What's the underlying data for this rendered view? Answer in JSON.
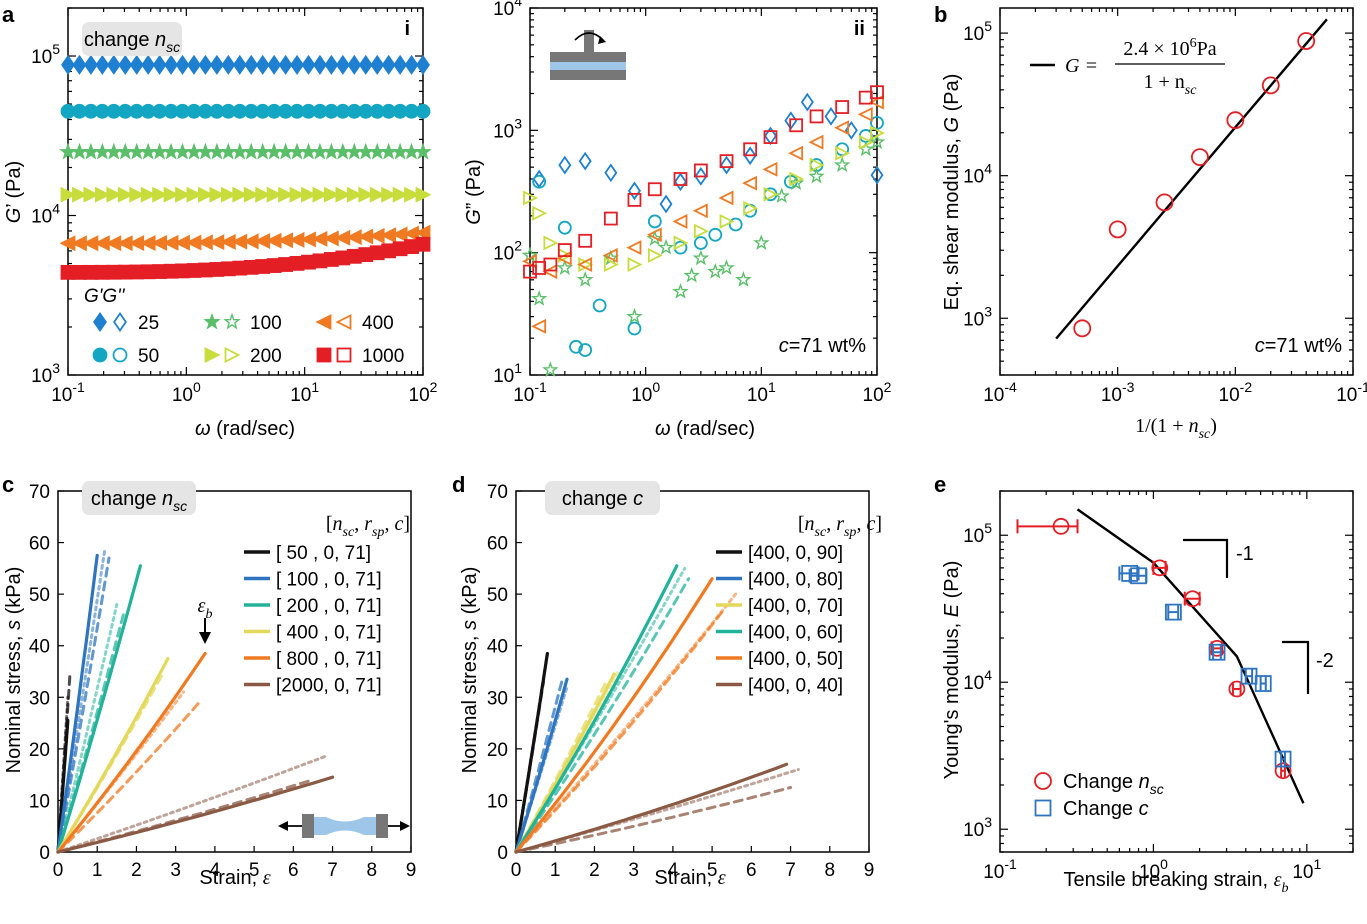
{
  "panel_labels": [
    "a",
    "b",
    "c",
    "d",
    "e"
  ],
  "chart_data": [
    {
      "id": "a_i",
      "type": "scatter",
      "corner_label": "i",
      "badge": "change n_sc",
      "xlabel": "ω (rad/sec)",
      "ylabel": "G' (Pa)",
      "xscale": "log",
      "yscale": "log",
      "xlim": [
        0.1,
        100
      ],
      "ylim": [
        1000,
        200000
      ],
      "xticks": [
        {
          "v": 0.1,
          "b": "10",
          "e": "-1"
        },
        {
          "v": 1,
          "b": "10",
          "e": "0"
        },
        {
          "v": 10,
          "b": "10",
          "e": "1"
        },
        {
          "v": 100,
          "b": "10",
          "e": "2"
        }
      ],
      "yticks": [
        {
          "v": 1000,
          "b": "10",
          "e": "3"
        },
        {
          "v": 10000,
          "b": "10",
          "e": "4"
        },
        {
          "v": 100000,
          "b": "10",
          "e": "5"
        }
      ],
      "legend_title": "G'G''",
      "series": [
        {
          "name": "25",
          "marker": "diamond",
          "color": "#1f7fd0",
          "x": [
            0.1,
            100
          ],
          "y": [
            88000,
            88000
          ],
          "shape": "flat"
        },
        {
          "name": "50",
          "marker": "circle",
          "color": "#13a6c2",
          "x": [
            0.1,
            100
          ],
          "y": [
            45000,
            45000
          ],
          "shape": "flat"
        },
        {
          "name": "100",
          "marker": "star",
          "color": "#5bbf6a",
          "x": [
            0.1,
            100
          ],
          "y": [
            25000,
            25000
          ],
          "shape": "flat"
        },
        {
          "name": "200",
          "marker": "triangle-right",
          "color": "#c8dc3c",
          "x": [
            0.1,
            100
          ],
          "y": [
            13500,
            13500
          ],
          "shape": "flat"
        },
        {
          "name": "400",
          "marker": "triangle-left",
          "color": "#f07a22",
          "x": [
            0.1,
            100
          ],
          "y": [
            6700,
            7800
          ],
          "shape": "rise"
        },
        {
          "name": "1000",
          "marker": "square",
          "color": "#e41e25",
          "x": [
            0.1,
            100
          ],
          "y": [
            4400,
            6600
          ],
          "shape": "rise"
        }
      ]
    },
    {
      "id": "a_ii",
      "type": "scatter",
      "corner_label": "ii",
      "annotation": "c=71 wt%",
      "xlabel": "ω (rad/sec)",
      "ylabel": "G'' (Pa)",
      "xscale": "log",
      "yscale": "log",
      "xlim": [
        0.1,
        100
      ],
      "ylim": [
        10,
        10000
      ],
      "xticks": [
        {
          "v": 0.1,
          "b": "10",
          "e": "-1"
        },
        {
          "v": 1,
          "b": "10",
          "e": "0"
        },
        {
          "v": 10,
          "b": "10",
          "e": "1"
        },
        {
          "v": 100,
          "b": "10",
          "e": "2"
        }
      ],
      "yticks": [
        {
          "v": 10,
          "b": "10",
          "e": "1"
        },
        {
          "v": 100,
          "b": "10",
          "e": "2"
        },
        {
          "v": 1000,
          "b": "10",
          "e": "3"
        },
        {
          "v": 10000,
          "b": "10",
          "e": "4"
        }
      ],
      "series": [
        {
          "name": "25",
          "marker": "diamond",
          "color": "#1f7fd0",
          "x": [
            0.12,
            0.2,
            0.3,
            0.5,
            0.8,
            1.5,
            2,
            3,
            5,
            8,
            12,
            18,
            25,
            40,
            60,
            100
          ],
          "y": [
            400,
            520,
            560,
            450,
            320,
            250,
            380,
            420,
            520,
            620,
            900,
            1200,
            1700,
            1300,
            1000,
            430
          ]
        },
        {
          "name": "50",
          "marker": "circle",
          "color": "#13a6c2",
          "x": [
            0.12,
            0.2,
            0.25,
            0.3,
            0.4,
            0.8,
            1.2,
            2,
            3,
            4,
            6,
            8,
            12,
            18,
            30,
            50,
            80,
            100
          ],
          "y": [
            380,
            160,
            17,
            16,
            37,
            24,
            180,
            110,
            120,
            140,
            170,
            220,
            300,
            380,
            520,
            700,
            900,
            1150
          ]
        },
        {
          "name": "100",
          "marker": "star",
          "color": "#5bbf6a",
          "x": [
            0.1,
            0.12,
            0.15,
            0.2,
            0.3,
            0.5,
            0.8,
            1.2,
            1.5,
            2,
            2.5,
            3,
            4,
            5,
            7,
            10,
            15,
            20,
            30,
            50,
            80,
            100
          ],
          "y": [
            95,
            42,
            11,
            75,
            60,
            90,
            30,
            130,
            110,
            48,
            65,
            90,
            70,
            75,
            60,
            120,
            290,
            370,
            420,
            520,
            700,
            800
          ]
        },
        {
          "name": "200",
          "marker": "triangle-right",
          "color": "#c8dc3c",
          "x": [
            0.1,
            0.12,
            0.15,
            0.2,
            0.3,
            0.5,
            0.8,
            1.2,
            2,
            3,
            5,
            8,
            12,
            20,
            30,
            50,
            80,
            100
          ],
          "y": [
            280,
            210,
            120,
            95,
            80,
            80,
            80,
            95,
            120,
            150,
            180,
            230,
            300,
            400,
            520,
            650,
            800,
            950
          ]
        },
        {
          "name": "400",
          "marker": "triangle-left",
          "color": "#f07a22",
          "x": [
            0.1,
            0.12,
            0.15,
            0.2,
            0.3,
            0.5,
            0.8,
            1.2,
            2,
            3,
            5,
            8,
            12,
            20,
            30,
            50,
            80,
            100
          ],
          "y": [
            85,
            25,
            70,
            90,
            80,
            95,
            110,
            140,
            180,
            220,
            280,
            370,
            480,
            650,
            800,
            1050,
            1350,
            1700
          ]
        },
        {
          "name": "1000",
          "marker": "square",
          "color": "#e41e25",
          "x": [
            0.1,
            0.12,
            0.15,
            0.2,
            0.3,
            0.5,
            0.8,
            1.2,
            2,
            3,
            5,
            8,
            12,
            20,
            30,
            50,
            80,
            100
          ],
          "y": [
            70,
            75,
            80,
            105,
            125,
            190,
            270,
            330,
            400,
            470,
            560,
            700,
            880,
            1100,
            1300,
            1550,
            1850,
            2050
          ]
        }
      ]
    },
    {
      "id": "b",
      "type": "scatter",
      "annotation": "c=71 wt%",
      "legend_formula": {
        "lhs": "G =",
        "num": "2.4 × 10",
        "num_exp": "6",
        "num_unit": "Pa",
        "den": "1 + n",
        "den_sub": "sc"
      },
      "xlabel": "1/(1 + n_sc)",
      "ylabel": "Eq. shear modulus, G (Pa)",
      "xscale": "log",
      "yscale": "log",
      "xlim": [
        0.0001,
        0.1
      ],
      "ylim": [
        400,
        150000
      ],
      "xticks": [
        {
          "v": 0.0001,
          "b": "10",
          "e": "-4"
        },
        {
          "v": 0.001,
          "b": "10",
          "e": "-3"
        },
        {
          "v": 0.01,
          "b": "10",
          "e": "-2"
        },
        {
          "v": 0.1,
          "b": "10",
          "e": "-1"
        }
      ],
      "yticks": [
        {
          "v": 1000,
          "b": "10",
          "e": "3"
        },
        {
          "v": 10000,
          "b": "10",
          "e": "4"
        },
        {
          "v": 100000,
          "b": "10",
          "e": "5"
        }
      ],
      "points": {
        "x": [
          0.0005,
          0.001,
          0.0025,
          0.005,
          0.01,
          0.02,
          0.04
        ],
        "y": [
          850,
          4200,
          6500,
          13500,
          24500,
          43000,
          88000
        ],
        "color": "#e41e25"
      },
      "fit": {
        "x": [
          0.0003,
          0.06
        ],
        "y": [
          720,
          125000
        ]
      }
    },
    {
      "id": "c",
      "type": "line",
      "badge": "change n_sc",
      "xlabel": "Strain, ε",
      "ylabel": "Nominal stress, s (kPa)",
      "xlim": [
        0,
        9
      ],
      "ylim": [
        0,
        70
      ],
      "xticks": [
        0,
        1,
        2,
        3,
        4,
        5,
        6,
        7,
        8,
        9
      ],
      "yticks": [
        0,
        10,
        20,
        30,
        40,
        50,
        60,
        70
      ],
      "legend_title": "[n_sc, r_sp, c]",
      "break_label": "ε_b",
      "series": [
        {
          "name": "[  50  , 0, 71]",
          "color": "#111111",
          "end": [
            0.25,
            25.5
          ],
          "curv": 0.05,
          "dash1": [
            0.25,
            30
          ],
          "dash2": [
            0.3,
            34
          ]
        },
        {
          "name": "[ 100  , 0, 71]",
          "color": "#2e74c0",
          "end": [
            1.0,
            57.5
          ],
          "curv": 0.05,
          "dash1": [
            1.2,
            59
          ],
          "dash2": [
            1.3,
            57
          ]
        },
        {
          "name": "[ 200  , 0, 71]",
          "color": "#22b29a",
          "end": [
            2.1,
            55.5
          ],
          "curv": 0.06,
          "dash1": [
            1.5,
            48
          ],
          "dash2": [
            1.7,
            47
          ]
        },
        {
          "name": "[ 400  , 0, 71]",
          "color": "#e3d85a",
          "end": [
            2.8,
            37.5
          ],
          "curv": 0.08,
          "dash1": [
            2.5,
            33
          ],
          "dash2": [
            2.7,
            35
          ]
        },
        {
          "name": "[ 800  , 0, 71]",
          "color": "#f07a22",
          "end": [
            3.75,
            38.5
          ],
          "curv": 0.1,
          "dash1": [
            3.2,
            31
          ],
          "dash2": [
            3.6,
            29
          ]
        },
        {
          "name": "[2000, 0, 71]",
          "color": "#8b5a45",
          "end": [
            7.0,
            14.5
          ],
          "curv": 0.12,
          "dash1": [
            6.8,
            18.5
          ],
          "dash2": [
            6.5,
            14
          ]
        }
      ]
    },
    {
      "id": "d",
      "type": "line",
      "badge": "change c",
      "xlabel": "Strain, ε",
      "ylabel": "Nominal stress, s (kPa)",
      "xlim": [
        0,
        9
      ],
      "ylim": [
        0,
        70
      ],
      "xticks": [
        0,
        1,
        2,
        3,
        4,
        5,
        6,
        7,
        8,
        9
      ],
      "yticks": [
        0,
        10,
        20,
        30,
        40,
        50,
        60,
        70
      ],
      "legend_title": "[n_sc, r_sp, c]",
      "series": [
        {
          "name": "[400, 0, 90]",
          "color": "#111111",
          "end": [
            0.8,
            38.5
          ],
          "curv": 0.05,
          "dash1": [
            0.75,
            36
          ],
          "dash2": [
            0.7,
            33
          ]
        },
        {
          "name": "[400, 0, 80]",
          "color": "#2e74c0",
          "end": [
            1.3,
            33.5
          ],
          "curv": 0.05,
          "dash1": [
            1.3,
            32
          ],
          "dash2": [
            1.2,
            34
          ]
        },
        {
          "name": "[400, 0, 70]",
          "color": "#e3d85a",
          "end": [
            2.5,
            34.5
          ],
          "curv": 0.07,
          "dash1": [
            2.6,
            35
          ],
          "dash2": [
            2.3,
            33
          ]
        },
        {
          "name": "[400, 0, 60]",
          "color": "#22b29a",
          "end": [
            4.1,
            55.5
          ],
          "curv": 0.12,
          "dash1": [
            4.3,
            55
          ],
          "dash2": [
            4.4,
            53
          ]
        },
        {
          "name": "[400, 0, 50]",
          "color": "#f07a22",
          "end": [
            5.0,
            53.0
          ],
          "curv": 0.14,
          "dash1": [
            5.6,
            50
          ],
          "dash2": [
            5.3,
            47
          ]
        },
        {
          "name": "[400, 0, 40]",
          "color": "#8b5a45",
          "end": [
            6.9,
            17.0
          ],
          "curv": 0.15,
          "dash1": [
            7.2,
            16
          ],
          "dash2": [
            7.0,
            12.5
          ]
        }
      ]
    },
    {
      "id": "e",
      "type": "scatter",
      "xlabel": "Tensile breaking strain, ε_b",
      "ylabel": "Young's modulus, E (Pa)",
      "xscale": "log",
      "yscale": "log",
      "xlim": [
        0.1,
        20
      ],
      "ylim": [
        700,
        200000
      ],
      "xticks": [
        {
          "v": 0.1,
          "b": "10",
          "e": "-1"
        },
        {
          "v": 1,
          "b": "10",
          "e": "0"
        },
        {
          "v": 10,
          "b": "10",
          "e": "1"
        }
      ],
      "yticks": [
        {
          "v": 1000,
          "b": "10",
          "e": "3"
        },
        {
          "v": 10000,
          "b": "10",
          "e": "4"
        },
        {
          "v": 100000,
          "b": "10",
          "e": "5"
        }
      ],
      "slope_labels": [
        "-1",
        "-2"
      ],
      "series": [
        {
          "name": "Change n_sc",
          "marker": "circle",
          "color": "#e41e25",
          "x": [
            0.25,
            1.1,
            1.8,
            2.6,
            3.5,
            7.0
          ],
          "y": [
            115000,
            60000,
            37000,
            17000,
            9000,
            2500
          ],
          "xerr": [
            [
              0.13,
              0.32
            ],
            [
              1.0,
              1.2
            ],
            [
              1.6,
              2.0
            ],
            [
              2.4,
              2.8
            ],
            [
              3.3,
              3.7
            ],
            [
              6.8,
              7.2
            ]
          ]
        },
        {
          "name": "Change c",
          "marker": "square",
          "color": "#2e74c0",
          "x": [
            0.7,
            0.8,
            1.35,
            2.6,
            4.2,
            5.2,
            7.0
          ],
          "y": [
            55000,
            53000,
            30000,
            16000,
            11000,
            9800,
            3000
          ],
          "xerr": [
            [
              0.6,
              0.8
            ],
            [
              0.7,
              0.9
            ],
            [
              1.25,
              1.45
            ],
            [
              2.45,
              2.75
            ],
            [
              4.0,
              4.4
            ],
            [
              5.0,
              5.4
            ],
            [
              6.8,
              7.2
            ]
          ]
        }
      ],
      "fit": {
        "x": [
          0.32,
          1.0,
          3.5,
          9.5
        ],
        "y": [
          150000,
          65000,
          15000,
          1500
        ]
      }
    }
  ]
}
